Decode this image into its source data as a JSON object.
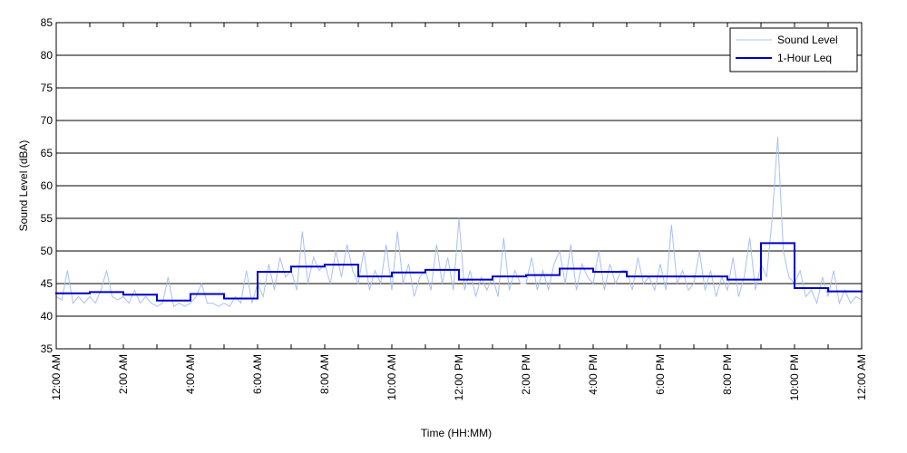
{
  "chart_data": {
    "type": "line",
    "xlabel": "Time (HH:MM)",
    "ylabel": "Sound Level (dBA)",
    "xlim": [
      0,
      1440
    ],
    "xticks": [
      {
        "value": 0,
        "label": "12:00 AM"
      },
      {
        "value": 120,
        "label": "2:00 AM"
      },
      {
        "value": 240,
        "label": "4:00 AM"
      },
      {
        "value": 360,
        "label": "6:00 AM"
      },
      {
        "value": 480,
        "label": "8:00 AM"
      },
      {
        "value": 600,
        "label": "10:00 AM"
      },
      {
        "value": 720,
        "label": "12:00 PM"
      },
      {
        "value": 840,
        "label": "2:00 PM"
      },
      {
        "value": 960,
        "label": "4:00 PM"
      },
      {
        "value": 1080,
        "label": "6:00 PM"
      },
      {
        "value": 1200,
        "label": "8:00 PM"
      },
      {
        "value": 1320,
        "label": "10:00 PM"
      },
      {
        "value": 1440,
        "label": "12:00 AM"
      }
    ],
    "xminorticks": [
      60,
      180,
      300,
      420,
      540,
      660,
      780,
      900,
      1020,
      1140,
      1260,
      1380
    ],
    "ylim": [
      35,
      85
    ],
    "yticks": [
      35,
      40,
      45,
      50,
      55,
      60,
      65,
      70,
      75,
      80,
      85
    ],
    "grid": true,
    "legend": "upper right",
    "series": [
      {
        "name": "Sound Level",
        "color": "#a9c0f2",
        "x": [
          0,
          10,
          20,
          30,
          40,
          50,
          60,
          70,
          80,
          90,
          100,
          110,
          120,
          130,
          140,
          150,
          160,
          170,
          180,
          190,
          200,
          210,
          220,
          230,
          240,
          250,
          260,
          270,
          280,
          290,
          300,
          310,
          320,
          330,
          340,
          350,
          360,
          370,
          380,
          390,
          400,
          410,
          420,
          430,
          440,
          450,
          460,
          470,
          480,
          490,
          500,
          510,
          520,
          530,
          540,
          550,
          560,
          570,
          580,
          590,
          600,
          610,
          620,
          630,
          640,
          650,
          660,
          670,
          680,
          690,
          700,
          710,
          720,
          730,
          740,
          750,
          760,
          770,
          780,
          790,
          800,
          810,
          820,
          830,
          840,
          850,
          860,
          870,
          880,
          890,
          900,
          910,
          920,
          930,
          940,
          950,
          960,
          970,
          980,
          990,
          1000,
          1010,
          1020,
          1030,
          1040,
          1050,
          1060,
          1070,
          1080,
          1090,
          1100,
          1110,
          1120,
          1130,
          1140,
          1150,
          1160,
          1170,
          1180,
          1190,
          1200,
          1210,
          1220,
          1230,
          1240,
          1250,
          1260,
          1270,
          1280,
          1290,
          1300,
          1310,
          1320,
          1330,
          1340,
          1350,
          1360,
          1370,
          1380,
          1390,
          1400,
          1410,
          1420,
          1430,
          1440
        ],
        "values": [
          43,
          42.5,
          47,
          42,
          43,
          42,
          43,
          42,
          44,
          47,
          43,
          42.5,
          43,
          42,
          44,
          42,
          43,
          42,
          41.5,
          42,
          46,
          41.5,
          42,
          41.5,
          42,
          43,
          45,
          42,
          42,
          41.5,
          42,
          41.5,
          43,
          42,
          47,
          42,
          45,
          43,
          48,
          44,
          49,
          46,
          47,
          44,
          53,
          45,
          49,
          47,
          48,
          45,
          50,
          46,
          51,
          47,
          45,
          50,
          44,
          47,
          45,
          51,
          44,
          53,
          45,
          48,
          43,
          46,
          47,
          44,
          51,
          45,
          49,
          44,
          55,
          44,
          47,
          43,
          46,
          44,
          46,
          43,
          52,
          44,
          47,
          45,
          45,
          49,
          44,
          47,
          44,
          48,
          50,
          45,
          51,
          44,
          48,
          46,
          45,
          50,
          44,
          48,
          45,
          47,
          47,
          44,
          49,
          45,
          46,
          44,
          48,
          44,
          54,
          45,
          47,
          44,
          45,
          50,
          44,
          47,
          43,
          46,
          44,
          49,
          43,
          46,
          52,
          44,
          48,
          46,
          55,
          67.5,
          50,
          46,
          45,
          47,
          43,
          44,
          42,
          46,
          43,
          47,
          42,
          44,
          42,
          43,
          42.5
        ]
      },
      {
        "name": "1-Hour Leq",
        "color": "#0000c8",
        "step": "post",
        "x": [
          0,
          60,
          120,
          180,
          240,
          300,
          360,
          420,
          480,
          540,
          600,
          660,
          720,
          780,
          840,
          900,
          960,
          1020,
          1080,
          1140,
          1200,
          1260,
          1320,
          1380
        ],
        "values": [
          43.5,
          43.7,
          43.3,
          42.4,
          43.4,
          42.7,
          46.8,
          47.6,
          47.9,
          46.1,
          46.7,
          47.1,
          45.6,
          46.1,
          46.3,
          47.3,
          46.8,
          46.1,
          46.1,
          46.1,
          45.6,
          51.2,
          44.3,
          43.8
        ]
      }
    ]
  }
}
